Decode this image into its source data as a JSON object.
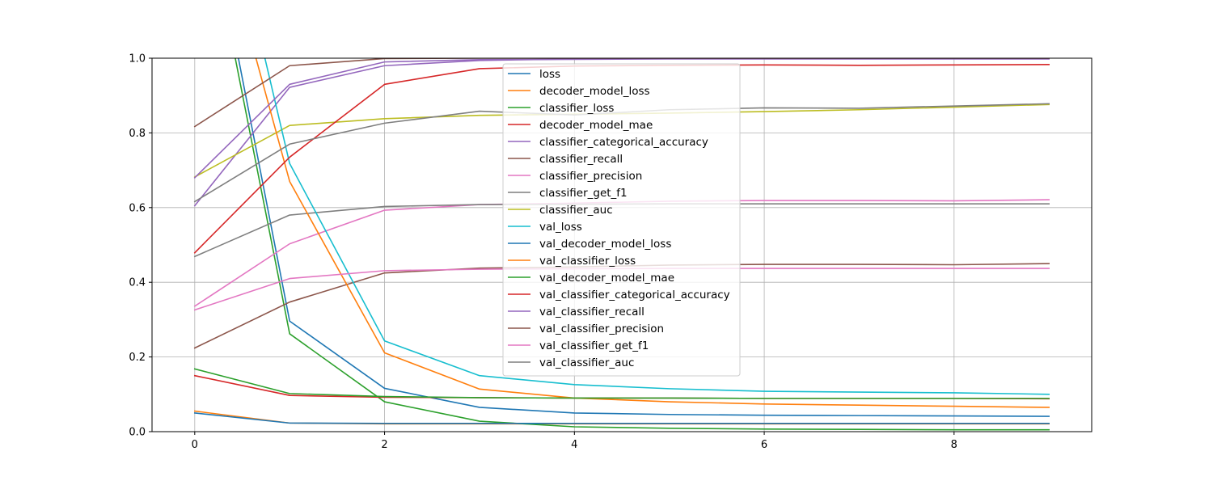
{
  "chart_data": {
    "type": "line",
    "title": "",
    "xlabel": "",
    "ylabel": "",
    "xlim": [
      -0.45,
      9.45
    ],
    "ylim": [
      0,
      1.0
    ],
    "x": [
      0,
      1,
      2,
      3,
      4,
      5,
      6,
      7,
      8,
      9
    ],
    "xticks": [
      0,
      2,
      4,
      6,
      8
    ],
    "yticks": [
      0.0,
      0.2,
      0.4,
      0.6,
      0.8,
      1.0
    ],
    "xtick_labels": [
      "0",
      "2",
      "4",
      "6",
      "8"
    ],
    "ytick_labels": [
      "0.0",
      "0.2",
      "0.4",
      "0.6",
      "0.8",
      "1.0"
    ],
    "grid": true,
    "legend_position": "top-center",
    "series": [
      {
        "name": "loss",
        "color": "#1f77b4",
        "values": [
          1.6,
          0.296,
          0.116,
          0.065,
          0.05,
          0.046,
          0.044,
          0.043,
          0.042,
          0.041
        ]
      },
      {
        "name": "decoder_model_loss",
        "color": "#ff7f0e",
        "values": [
          0.055,
          0.023,
          0.021,
          0.021,
          0.021,
          0.021,
          0.021,
          0.021,
          0.021,
          0.021
        ]
      },
      {
        "name": "classifier_loss",
        "color": "#2ca02c",
        "values": [
          1.55,
          0.262,
          0.08,
          0.028,
          0.013,
          0.009,
          0.007,
          0.006,
          0.005,
          0.005
        ]
      },
      {
        "name": "decoder_model_mae",
        "color": "#d62728",
        "values": [
          0.15,
          0.097,
          0.092,
          0.091,
          0.09,
          0.09,
          0.089,
          0.089,
          0.089,
          0.088
        ]
      },
      {
        "name": "classifier_categorical_accuracy",
        "color": "#9467bd",
        "values": [
          0.605,
          0.922,
          0.98,
          0.994,
          0.998,
          0.999,
          0.999,
          1.0,
          1.0,
          1.0
        ]
      },
      {
        "name": "classifier_recall",
        "color": "#8c564b",
        "values": [
          0.224,
          0.347,
          0.425,
          0.438,
          0.441,
          0.446,
          0.448,
          0.448,
          0.447,
          0.45
        ]
      },
      {
        "name": "classifier_precision",
        "color": "#e377c2",
        "values": [
          0.336,
          0.503,
          0.593,
          0.608,
          0.612,
          0.617,
          0.619,
          0.619,
          0.618,
          0.621
        ]
      },
      {
        "name": "classifier_get_f1",
        "color": "#7f7f7f",
        "values": [
          0.469,
          0.58,
          0.603,
          0.608,
          0.609,
          0.61,
          0.61,
          0.61,
          0.61,
          0.61
        ]
      },
      {
        "name": "classifier_auc",
        "color": "#bcbd22",
        "values": [
          0.682,
          0.82,
          0.838,
          0.847,
          0.85,
          0.853,
          0.857,
          0.862,
          0.869,
          0.876
        ]
      },
      {
        "name": "val_loss",
        "color": "#17becf",
        "values": [
          1.8,
          0.718,
          0.243,
          0.15,
          0.126,
          0.115,
          0.108,
          0.106,
          0.104,
          0.1
        ]
      },
      {
        "name": "val_decoder_model_loss",
        "color": "#1f77b4",
        "values": [
          0.05,
          0.023,
          0.022,
          0.022,
          0.022,
          0.022,
          0.022,
          0.022,
          0.022,
          0.022
        ]
      },
      {
        "name": "val_classifier_loss",
        "color": "#ff7f0e",
        "values": [
          1.6,
          0.67,
          0.211,
          0.114,
          0.09,
          0.08,
          0.074,
          0.071,
          0.068,
          0.065
        ]
      },
      {
        "name": "val_decoder_model_mae",
        "color": "#2ca02c",
        "values": [
          0.168,
          0.102,
          0.094,
          0.091,
          0.09,
          0.09,
          0.089,
          0.089,
          0.089,
          0.089
        ]
      },
      {
        "name": "val_classifier_categorical_accuracy",
        "color": "#d62728",
        "values": [
          0.479,
          0.735,
          0.93,
          0.972,
          0.979,
          0.981,
          0.982,
          0.981,
          0.982,
          0.983
        ]
      },
      {
        "name": "val_classifier_recall",
        "color": "#9467bd",
        "values": [
          0.68,
          0.93,
          0.99,
          0.996,
          0.997,
          0.998,
          0.998,
          0.998,
          0.998,
          0.998
        ]
      },
      {
        "name": "val_classifier_precision",
        "color": "#8c564b",
        "values": [
          0.817,
          0.98,
          0.999,
          1.0,
          1.0,
          1.0,
          1.0,
          1.0,
          1.0,
          1.0
        ]
      },
      {
        "name": "val_classifier_get_f1",
        "color": "#e377c2",
        "values": [
          0.326,
          0.41,
          0.431,
          0.435,
          0.436,
          0.437,
          0.437,
          0.437,
          0.437,
          0.437
        ]
      },
      {
        "name": "val_classifier_auc",
        "color": "#7f7f7f",
        "values": [
          0.616,
          0.77,
          0.826,
          0.858,
          0.848,
          0.862,
          0.867,
          0.866,
          0.872,
          0.878
        ]
      }
    ]
  }
}
